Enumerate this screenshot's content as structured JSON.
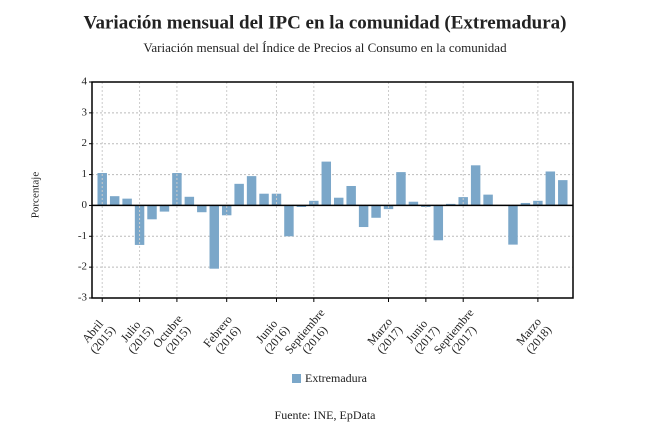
{
  "chart_data": {
    "type": "bar",
    "title": "Variación mensual del IPC en la comunidad (Extremadura)",
    "subtitle": "Variación mensual del Índice de Precios al Consumo en la comunidad",
    "ylabel": "Porcentaje",
    "source": "Fuente: INE, EpData",
    "categories": [
      "Abril (2015)",
      null,
      null,
      "Julio (2015)",
      null,
      null,
      "Octubre (2015)",
      null,
      null,
      null,
      "Febrero (2016)",
      null,
      null,
      null,
      "Junio (2016)",
      null,
      null,
      "Septiembre (2016)",
      null,
      null,
      null,
      null,
      null,
      "Marzo (2017)",
      null,
      null,
      "Junio (2017)",
      null,
      null,
      "Septiembre (2017)",
      null,
      null,
      null,
      null,
      null,
      "Marzo (2018)",
      null,
      null
    ],
    "series": [
      {
        "name": "Extremadura",
        "color": "#7ba7c9",
        "values": [
          1.05,
          0.3,
          0.22,
          -1.28,
          -0.45,
          -0.2,
          1.05,
          0.28,
          -0.22,
          -2.05,
          -0.32,
          0.7,
          0.95,
          0.38,
          0.38,
          -1.0,
          -0.05,
          0.15,
          1.42,
          0.25,
          0.63,
          -0.7,
          -0.4,
          -0.12,
          1.08,
          0.12,
          -0.05,
          -1.13,
          0.05,
          0.27,
          1.3,
          0.35,
          0,
          -1.27,
          0.08,
          0.15,
          1.1,
          0.82
        ]
      }
    ],
    "ylim": [
      -3,
      4
    ],
    "yticks": [
      -3,
      -2,
      -1,
      0,
      1,
      2,
      3,
      4
    ],
    "grid": true,
    "legend": "bottom"
  }
}
